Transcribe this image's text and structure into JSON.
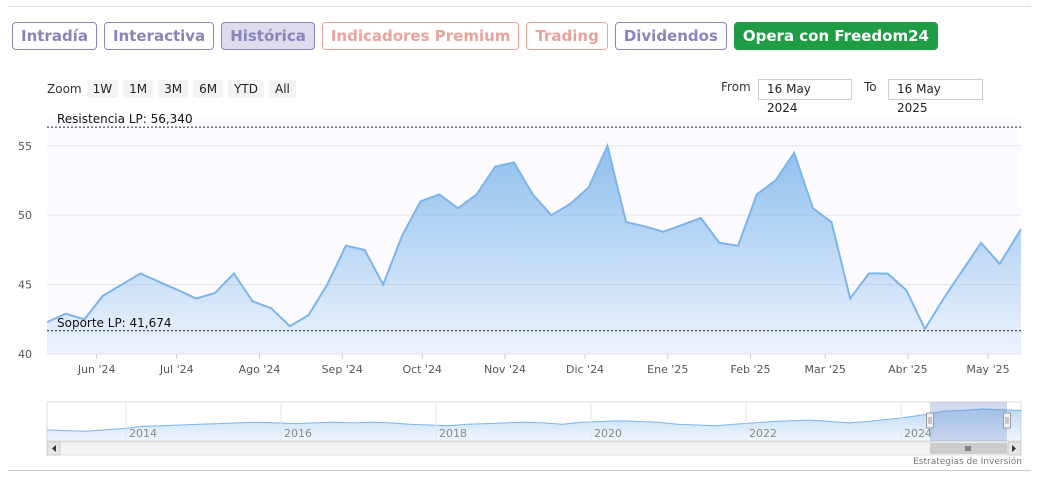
{
  "tabs": [
    {
      "label": "Intradía",
      "style": "purple"
    },
    {
      "label": "Interactiva",
      "style": "purple"
    },
    {
      "label": "Histórica",
      "style": "purple active"
    },
    {
      "label": "Indicadores Premium",
      "style": "salmon"
    },
    {
      "label": "Trading",
      "style": "salmon"
    },
    {
      "label": "Dividendos",
      "style": "purple"
    },
    {
      "label": "Opera con Freedom24",
      "style": "cta"
    }
  ],
  "zoom": {
    "label": "Zoom",
    "buttons": [
      "1W",
      "1M",
      "3M",
      "6M",
      "YTD",
      "All"
    ]
  },
  "range": {
    "from_label": "From",
    "from_value": "16 May 2024",
    "to_label": "To",
    "to_value": "16 May 2025"
  },
  "credit": "Estrategias de Inversión",
  "colors": {
    "line": "#7cb5ec",
    "tab_purple": "#8a84b8",
    "tab_salmon": "#e8a49c",
    "cta": "#1f9d45"
  },
  "chart_data": {
    "type": "area",
    "ylim": [
      40,
      57
    ],
    "yticks": [
      40,
      45,
      50,
      55
    ],
    "xticks": [
      "Jun '24",
      "Jul '24",
      "Ago '24",
      "Sep '24",
      "Oct '24",
      "Nov '24",
      "Dic '24",
      "Ene '25",
      "Feb '25",
      "Mar '25",
      "Abr '25",
      "May '25"
    ],
    "lines": [
      {
        "label": "Resistencia LP: 56,340",
        "value": 56.34
      },
      {
        "label": "Soporte LP: 41,674",
        "value": 41.674
      }
    ],
    "x": [
      "2024-05-16",
      "2024-05-23",
      "2024-05-30",
      "2024-06-06",
      "2024-06-13",
      "2024-06-20",
      "2024-06-27",
      "2024-07-04",
      "2024-07-11",
      "2024-07-18",
      "2024-07-25",
      "2024-08-01",
      "2024-08-08",
      "2024-08-15",
      "2024-08-22",
      "2024-08-29",
      "2024-09-05",
      "2024-09-12",
      "2024-09-19",
      "2024-09-26",
      "2024-10-03",
      "2024-10-10",
      "2024-10-17",
      "2024-10-24",
      "2024-10-31",
      "2024-11-07",
      "2024-11-14",
      "2024-11-21",
      "2024-11-28",
      "2024-12-05",
      "2024-12-12",
      "2024-12-19",
      "2024-12-26",
      "2025-01-02",
      "2025-01-09",
      "2025-01-16",
      "2025-01-23",
      "2025-01-30",
      "2025-02-06",
      "2025-02-13",
      "2025-02-20",
      "2025-02-27",
      "2025-03-06",
      "2025-03-13",
      "2025-03-20",
      "2025-03-27",
      "2025-04-03",
      "2025-04-10",
      "2025-04-17",
      "2025-04-24",
      "2025-05-01",
      "2025-05-08",
      "2025-05-16"
    ],
    "y": [
      42.3,
      42.9,
      42.5,
      44.2,
      45.0,
      45.8,
      45.2,
      44.6,
      44.0,
      44.4,
      45.8,
      43.8,
      43.3,
      42.0,
      42.8,
      45.0,
      47.8,
      47.5,
      45.0,
      48.5,
      51.0,
      51.5,
      50.5,
      51.5,
      53.5,
      53.8,
      51.5,
      50.0,
      50.8,
      52.0,
      55.0,
      49.5,
      49.2,
      48.8,
      49.3,
      49.8,
      48.0,
      47.8,
      51.5,
      52.5,
      54.5,
      50.5,
      49.5,
      44.0,
      45.8,
      45.8,
      44.6,
      41.8,
      44.0,
      46.0,
      48.0,
      46.5,
      49.0
    ],
    "navigator": {
      "years": [
        "2014",
        "2016",
        "2018",
        "2020",
        "2022",
        "2024"
      ],
      "values": [
        28,
        27.5,
        27,
        28,
        29,
        30.5,
        31,
        31.5,
        32,
        32.5,
        33,
        33.5,
        33,
        32.5,
        33,
        33.5,
        33,
        33.5,
        33,
        32,
        31.5,
        31,
        32,
        32.5,
        33,
        33.5,
        33,
        32,
        33.5,
        34,
        34.5,
        34,
        33.5,
        32,
        31.5,
        31,
        32,
        33,
        34,
        34.5,
        35,
        34,
        33,
        34,
        35.5,
        37,
        39,
        41.5,
        42,
        43,
        42.5,
        42
      ]
    }
  }
}
